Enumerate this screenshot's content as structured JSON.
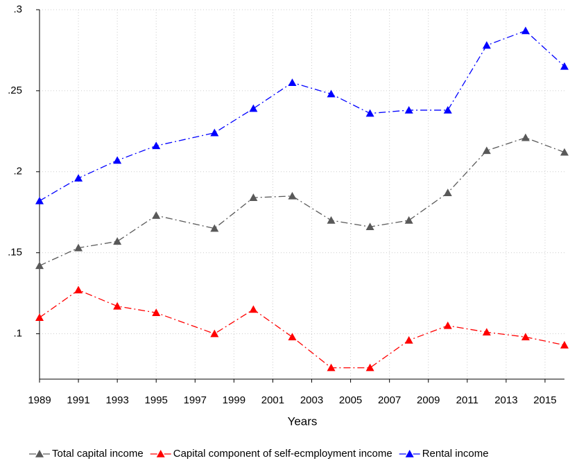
{
  "chart_data": {
    "type": "line",
    "x_label": "Years",
    "x": [
      1989,
      1991,
      1993,
      1995,
      1998,
      2000,
      2002,
      2004,
      2006,
      2008,
      2010,
      2012,
      2014,
      2016
    ],
    "series": [
      {
        "name": "Total capital income",
        "color": "#595959",
        "values": [
          0.142,
          0.153,
          0.157,
          0.173,
          0.165,
          0.184,
          0.185,
          0.17,
          0.166,
          0.17,
          0.187,
          0.213,
          0.221,
          0.212
        ]
      },
      {
        "name": "Capital component of self-ecmployment income",
        "color": "#ff0000",
        "values": [
          0.11,
          0.127,
          0.117,
          0.113,
          0.1,
          0.115,
          0.098,
          0.079,
          0.079,
          0.096,
          0.105,
          0.101,
          0.098,
          0.093
        ]
      },
      {
        "name": "Rental income",
        "color": "#0000ff",
        "values": [
          0.182,
          0.196,
          0.207,
          0.216,
          0.224,
          0.239,
          0.255,
          0.248,
          0.236,
          0.238,
          0.238,
          0.278,
          0.287,
          0.265
        ]
      }
    ],
    "xlim": [
      1989,
      2016
    ],
    "xticks": [
      1989,
      1991,
      1993,
      1995,
      1997,
      1999,
      2001,
      2003,
      2005,
      2007,
      2009,
      2011,
      2013,
      2015
    ],
    "ylim": [
      0.072,
      0.3
    ],
    "yticks": [
      {
        "value": 0.1,
        "label": ".1"
      },
      {
        "value": 0.15,
        "label": ".15"
      },
      {
        "value": 0.2,
        "label": ".2"
      },
      {
        "value": 0.25,
        "label": ".25"
      },
      {
        "value": 0.3,
        "label": ".3"
      }
    ],
    "grid": true,
    "legend": "bottom"
  }
}
